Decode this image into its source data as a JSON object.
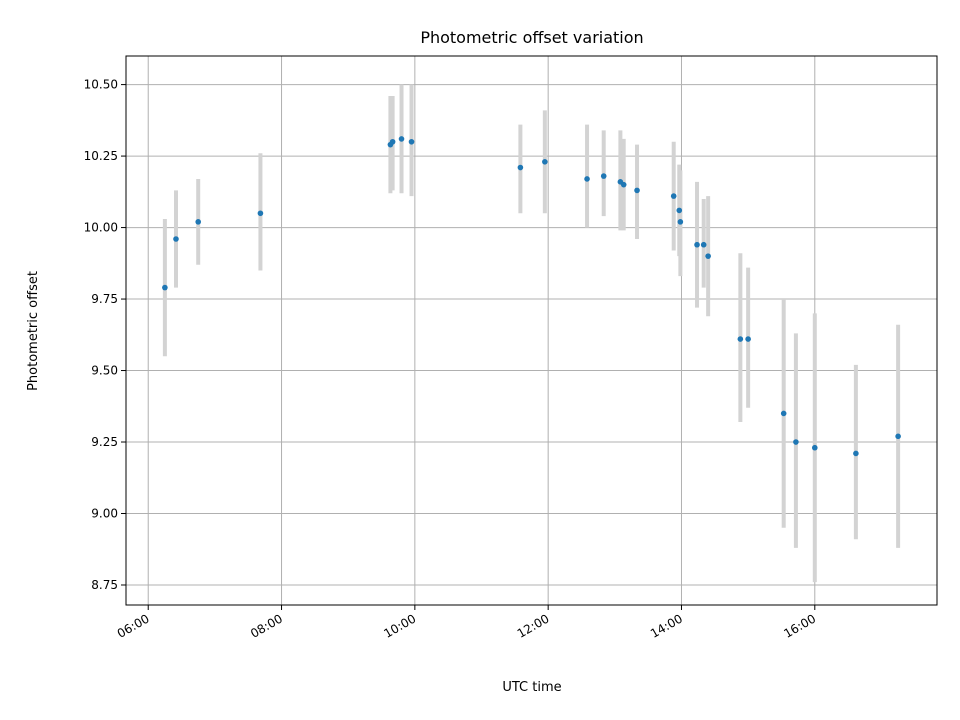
{
  "chart_data": {
    "type": "scatter",
    "title": "Photometric offset variation",
    "xlabel": "UTC time",
    "ylabel": "Photometric offset",
    "grid": true,
    "xlim": [
      "05:40",
      "17:50"
    ],
    "ylim": [
      8.68,
      10.6
    ],
    "x_ticks": [
      "06:00",
      "08:00",
      "10:00",
      "12:00",
      "14:00",
      "16:00"
    ],
    "y_ticks": [
      "8.75",
      "9.00",
      "9.25",
      "9.50",
      "9.75",
      "10.00",
      "10.25",
      "10.50"
    ],
    "points": [
      {
        "x": "06:15",
        "y": 9.79,
        "err_low": 9.55,
        "err_high": 10.03
      },
      {
        "x": "06:25",
        "y": 9.96,
        "err_low": 9.79,
        "err_high": 10.13
      },
      {
        "x": "06:45",
        "y": 10.02,
        "err_low": 9.87,
        "err_high": 10.17
      },
      {
        "x": "07:41",
        "y": 10.05,
        "err_low": 9.85,
        "err_high": 10.26
      },
      {
        "x": "09:38",
        "y": 10.29,
        "err_low": 10.12,
        "err_high": 10.46
      },
      {
        "x": "09:40",
        "y": 10.3,
        "err_low": 10.13,
        "err_high": 10.46
      },
      {
        "x": "09:48",
        "y": 10.31,
        "err_low": 10.12,
        "err_high": 10.5
      },
      {
        "x": "09:57",
        "y": 10.3,
        "err_low": 10.11,
        "err_high": 10.5
      },
      {
        "x": "11:35",
        "y": 10.21,
        "err_low": 10.05,
        "err_high": 10.36
      },
      {
        "x": "11:57",
        "y": 10.23,
        "err_low": 10.05,
        "err_high": 10.41
      },
      {
        "x": "12:35",
        "y": 10.17,
        "err_low": 10.0,
        "err_high": 10.36
      },
      {
        "x": "12:50",
        "y": 10.18,
        "err_low": 10.04,
        "err_high": 10.34
      },
      {
        "x": "13:05",
        "y": 10.16,
        "err_low": 9.99,
        "err_high": 10.34
      },
      {
        "x": "13:08",
        "y": 10.15,
        "err_low": 9.99,
        "err_high": 10.31
      },
      {
        "x": "13:20",
        "y": 10.13,
        "err_low": 9.96,
        "err_high": 10.29
      },
      {
        "x": "13:53",
        "y": 10.11,
        "err_low": 9.92,
        "err_high": 10.3
      },
      {
        "x": "13:58",
        "y": 10.06,
        "err_low": 9.9,
        "err_high": 10.22
      },
      {
        "x": "13:59",
        "y": 10.02,
        "err_low": 9.83,
        "err_high": 10.2
      },
      {
        "x": "14:14",
        "y": 9.94,
        "err_low": 9.72,
        "err_high": 10.16
      },
      {
        "x": "14:20",
        "y": 9.94,
        "err_low": 9.79,
        "err_high": 10.1
      },
      {
        "x": "14:24",
        "y": 9.9,
        "err_low": 9.69,
        "err_high": 10.11
      },
      {
        "x": "14:53",
        "y": 9.61,
        "err_low": 9.32,
        "err_high": 9.91
      },
      {
        "x": "15:00",
        "y": 9.61,
        "err_low": 9.37,
        "err_high": 9.86
      },
      {
        "x": "15:32",
        "y": 9.35,
        "err_low": 8.95,
        "err_high": 9.75
      },
      {
        "x": "15:43",
        "y": 9.25,
        "err_low": 8.88,
        "err_high": 9.63
      },
      {
        "x": "16:00",
        "y": 9.23,
        "err_low": 8.76,
        "err_high": 9.7
      },
      {
        "x": "16:37",
        "y": 9.21,
        "err_low": 8.91,
        "err_high": 9.52
      },
      {
        "x": "17:15",
        "y": 9.27,
        "err_low": 8.88,
        "err_high": 9.66
      }
    ],
    "colors": {
      "point": "#1f77b4",
      "errorbar": "#d3d3d3",
      "grid": "#b0b0b0"
    }
  }
}
